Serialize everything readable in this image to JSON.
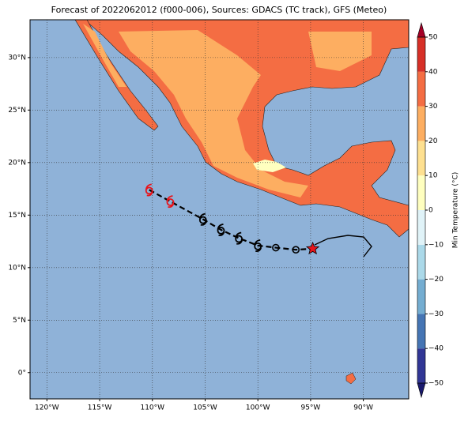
{
  "chart_data": {
    "type": "map",
    "title": "Forecast of 2022062012 (f000-006), Sources: GDACS (TC track), GFS (Meteo)",
    "xlim": [
      -121.6,
      -85.7
    ],
    "ylim": [
      -2.5,
      33.6
    ],
    "xticks": [
      {
        "value": -120,
        "label": "120°W"
      },
      {
        "value": -115,
        "label": "115°W"
      },
      {
        "value": -110,
        "label": "110°W"
      },
      {
        "value": -105,
        "label": "105°W"
      },
      {
        "value": -100,
        "label": "100°W"
      },
      {
        "value": -95,
        "label": "95°W"
      },
      {
        "value": -90,
        "label": "90°W"
      }
    ],
    "yticks": [
      {
        "value": 0,
        "label": "0°"
      },
      {
        "value": 5,
        "label": "5°N"
      },
      {
        "value": 10,
        "label": "10°N"
      },
      {
        "value": 15,
        "label": "15°N"
      },
      {
        "value": 20,
        "label": "20°N"
      },
      {
        "value": 25,
        "label": "25°N"
      },
      {
        "value": 30,
        "label": "30°N"
      }
    ],
    "grid": true,
    "track": {
      "lon": [
        -110.3,
        -108.3,
        -105.2,
        -103.5,
        -101.8,
        -100.0,
        -98.3,
        -96.4,
        -94.8
      ],
      "lat": [
        17.4,
        16.3,
        14.6,
        13.6,
        12.8,
        12.1,
        11.9,
        11.7,
        11.8
      ],
      "markers": [
        "cyclone",
        "cyclone",
        "cyclone",
        "cyclone",
        "cyclone",
        "cyclone",
        "circle",
        "circle",
        "star"
      ],
      "colors": [
        "#e8141b",
        "#e8141b",
        "#000000",
        "#000000",
        "#000000",
        "#000000",
        "#000000",
        "#000000",
        "#e8141b"
      ]
    },
    "colorbar": {
      "label": "Min Temperature (°C)",
      "lim": [
        -50,
        50
      ],
      "ticks": [
        {
          "value": -50,
          "label": "−50"
        },
        {
          "value": -40,
          "label": "−40"
        },
        {
          "value": -30,
          "label": "−30"
        },
        {
          "value": -20,
          "label": "−20"
        },
        {
          "value": -10,
          "label": "−10"
        },
        0,
        10,
        20,
        30,
        40,
        50
      ],
      "colors": [
        "#313695",
        "#4575b4",
        "#74add1",
        "#abd9e9",
        "#e0f3f8",
        "#ffffbf",
        "#fee090",
        "#fdae61",
        "#f46d43",
        "#d73027"
      ],
      "under": "#1a1a6e",
      "over": "#a50026"
    }
  }
}
